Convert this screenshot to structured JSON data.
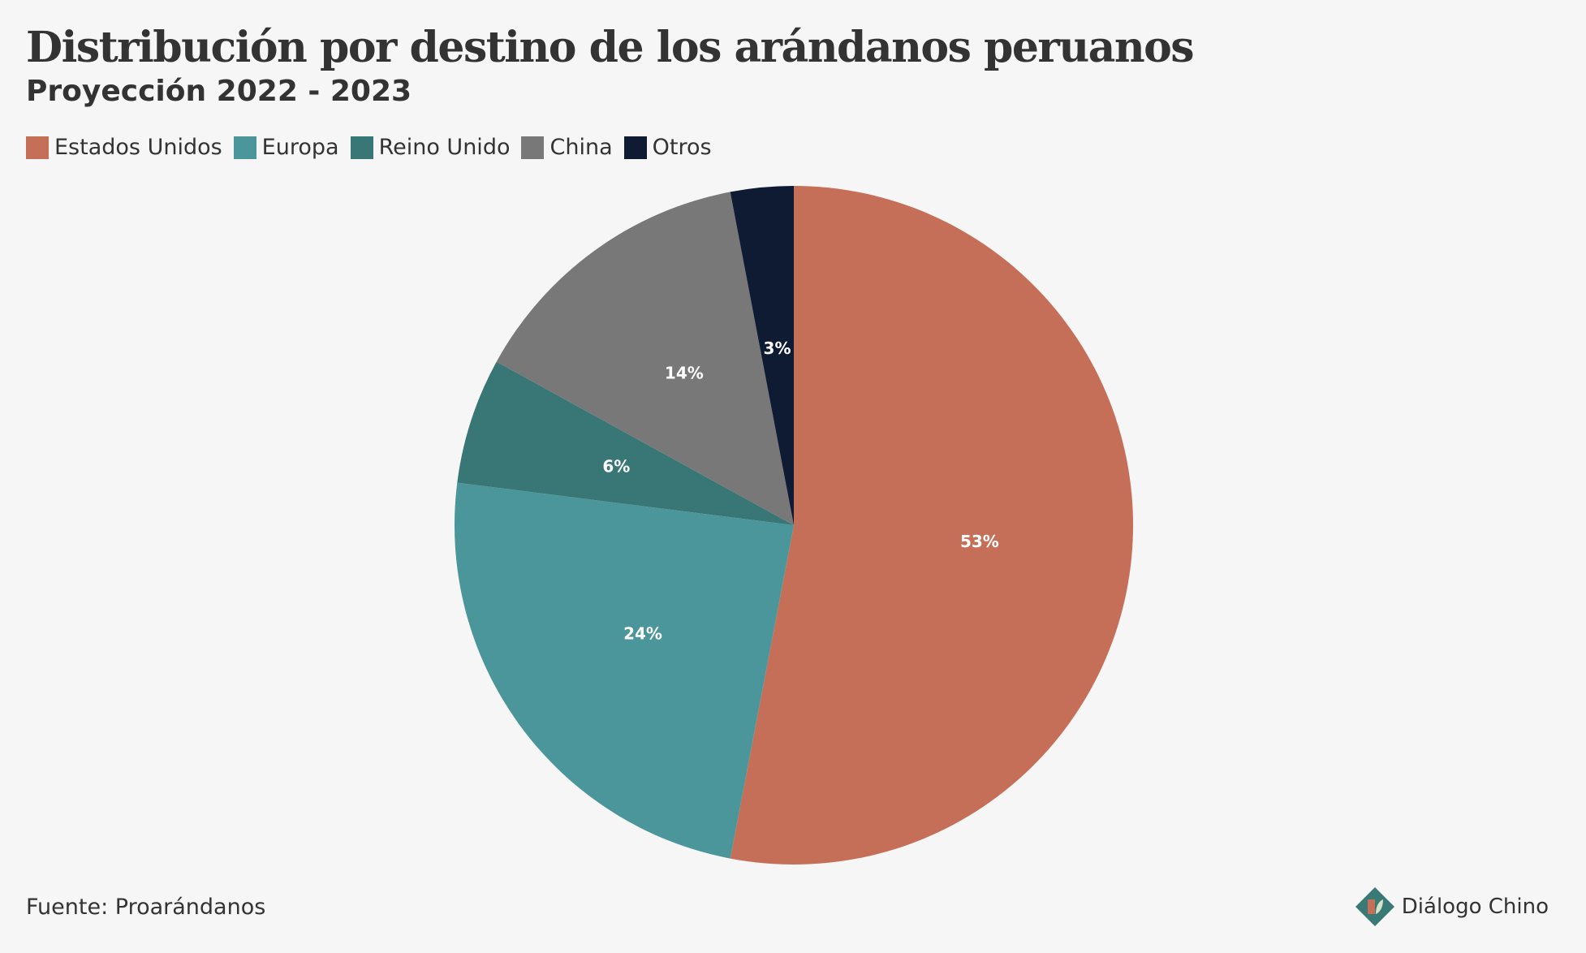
{
  "title": "Distribución por destino de los arándanos peruanos",
  "subtitle": "Proyección 2022 - 2023",
  "source": "Fuente: Proarándanos",
  "brand": {
    "name": "Diálogo Chino",
    "logo_colors": [
      "#3a7a76",
      "#c66f58",
      "#d6e3c9"
    ]
  },
  "chart_data": {
    "type": "pie",
    "title": "Distribución por destino de los arándanos peruanos",
    "subtitle": "Proyección 2022 - 2023",
    "legend_position": "top-left",
    "start_angle": "12 o'clock, clockwise",
    "categories": [
      "Estados Unidos",
      "Europa",
      "Reino Unido",
      "China",
      "Otros"
    ],
    "values": [
      53,
      24,
      6,
      14,
      3
    ],
    "labels": [
      "53%",
      "24%",
      "6%",
      "14%",
      "3%"
    ],
    "colors": [
      "#c66f58",
      "#4a969a",
      "#387775",
      "#787878",
      "#0f1a33"
    ],
    "unit": "%"
  }
}
